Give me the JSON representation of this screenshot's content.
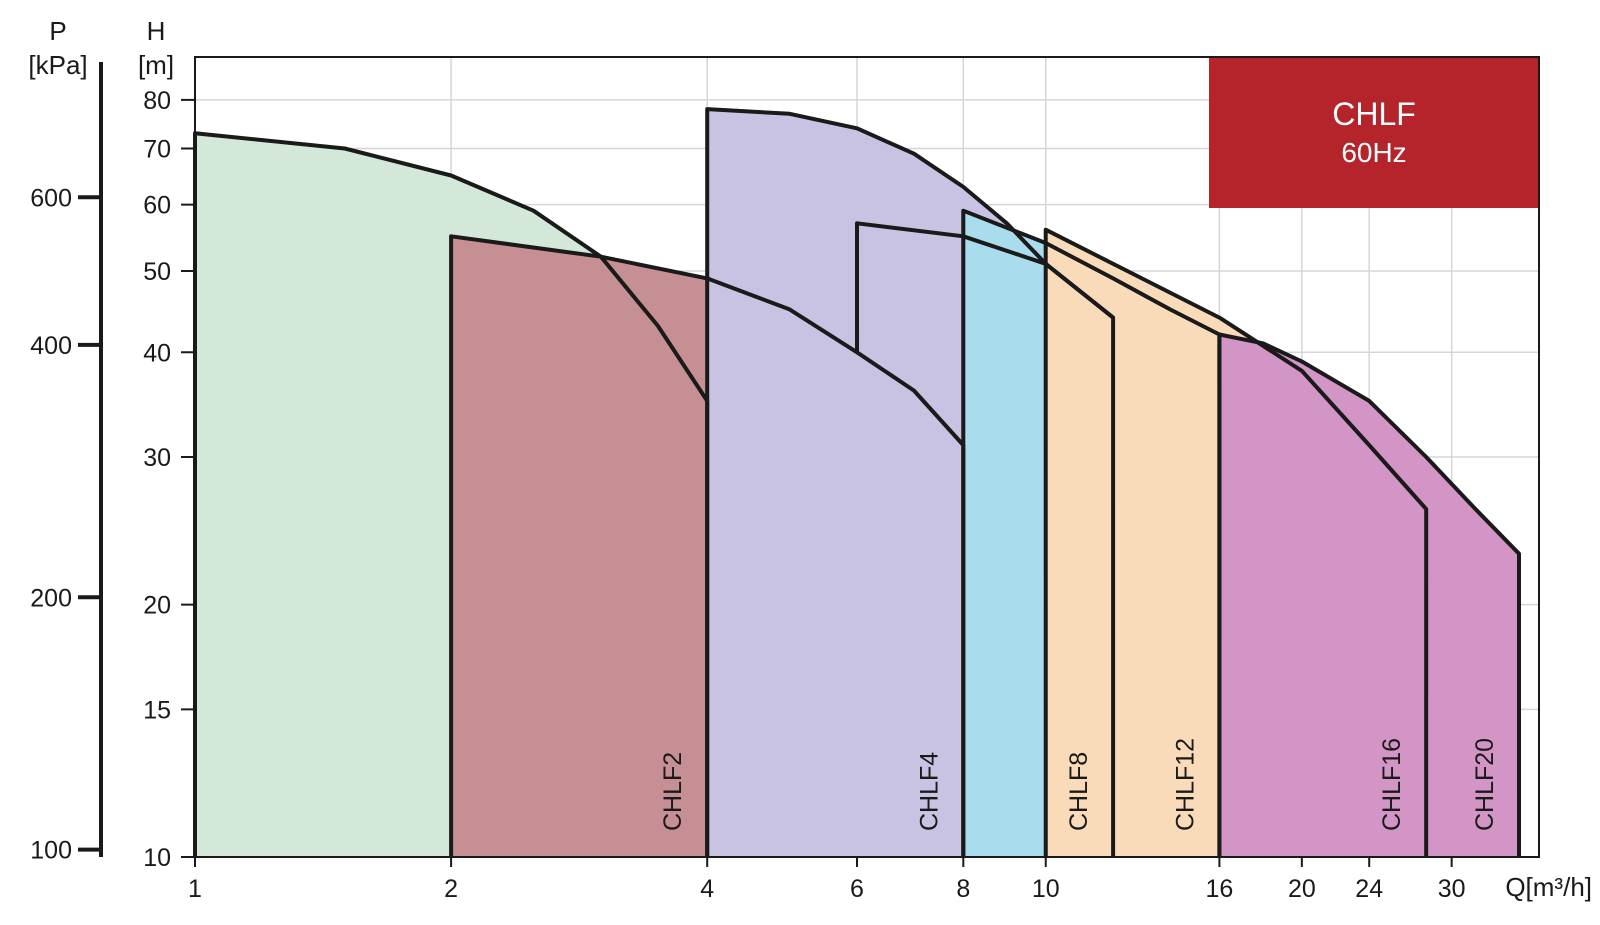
{
  "chart_data": {
    "type": "area",
    "x_scale": "log",
    "y_scale": "log",
    "xlabel": "Q[m³/h]",
    "ylabel": "H [m]",
    "ylabel_left": "P [kPa]",
    "ylabel_symbol": "H",
    "ylabel_unit": "[m]",
    "ylabel_left_symbol": "P",
    "ylabel_left_unit": "[kPa]",
    "xlim": [
      1,
      38
    ],
    "ylim": [
      10,
      90
    ],
    "x_ticks": [
      1,
      2,
      4,
      6,
      8,
      10,
      16,
      20,
      24,
      30
    ],
    "y_ticks": [
      10,
      15,
      20,
      30,
      40,
      50,
      60,
      70,
      80
    ],
    "p_ticks": [
      100,
      200,
      400,
      600
    ],
    "grid": true,
    "brand_box": {
      "title": "CHLF",
      "subtitle": "60Hz",
      "color": "#b5232b",
      "position": "top-right"
    },
    "series": [
      {
        "name": "CHLF2",
        "color": "#d3e8d8",
        "q_min": 1,
        "q_max": 4,
        "upper_curve": [
          [
            1,
            73
          ],
          [
            1.5,
            70
          ],
          [
            2,
            65
          ],
          [
            2.5,
            59
          ],
          [
            3,
            52
          ],
          [
            3.5,
            43
          ],
          [
            4,
            35
          ]
        ],
        "lower_curve": [
          [
            2,
            55
          ],
          [
            2,
            10
          ]
        ],
        "bottom": 10
      },
      {
        "name": "CHLF4",
        "color": "#c58f94",
        "q_min": 2,
        "q_max": 8,
        "upper_curve": [
          [
            2,
            55
          ],
          [
            3,
            52
          ],
          [
            4,
            49
          ],
          [
            5,
            45
          ],
          [
            6,
            40
          ],
          [
            7,
            36
          ],
          [
            8,
            31
          ]
        ],
        "bottom": 10
      },
      {
        "name": "CHLF8",
        "color": "#c8c3e2",
        "q_min": 4,
        "q_max": 12,
        "upper_curve": [
          [
            4,
            78
          ],
          [
            5,
            77
          ],
          [
            6,
            74
          ],
          [
            7,
            69
          ],
          [
            8,
            63
          ],
          [
            9,
            57
          ],
          [
            10,
            51
          ],
          [
            12,
            44
          ]
        ],
        "upper_curve_2": [
          [
            6,
            57
          ],
          [
            8,
            55
          ],
          [
            10,
            51
          ],
          [
            12,
            44
          ]
        ],
        "bottom": 10
      },
      {
        "name": "CHLF12",
        "color": "#a9dded",
        "q_min": 8,
        "q_max": 16,
        "upper_curve": [
          [
            8,
            59
          ],
          [
            10,
            54
          ],
          [
            12,
            49
          ],
          [
            14,
            45
          ],
          [
            16,
            42
          ]
        ],
        "bottom": 10
      },
      {
        "name": "CHLF16",
        "color": "#f9dbba",
        "q_min": 10,
        "q_max": 28,
        "upper_curve": [
          [
            10,
            56
          ],
          [
            16,
            44
          ],
          [
            20,
            38
          ],
          [
            24,
            31
          ],
          [
            28,
            26
          ]
        ],
        "bottom": 10
      },
      {
        "name": "CHLF20",
        "color": "#d295c6",
        "q_min": 16,
        "q_max": 36,
        "upper_curve": [
          [
            16,
            42
          ],
          [
            18,
            41
          ],
          [
            20,
            39
          ],
          [
            24,
            35
          ],
          [
            28,
            30
          ],
          [
            32,
            26
          ],
          [
            36,
            23
          ]
        ],
        "bottom": 10
      }
    ]
  }
}
